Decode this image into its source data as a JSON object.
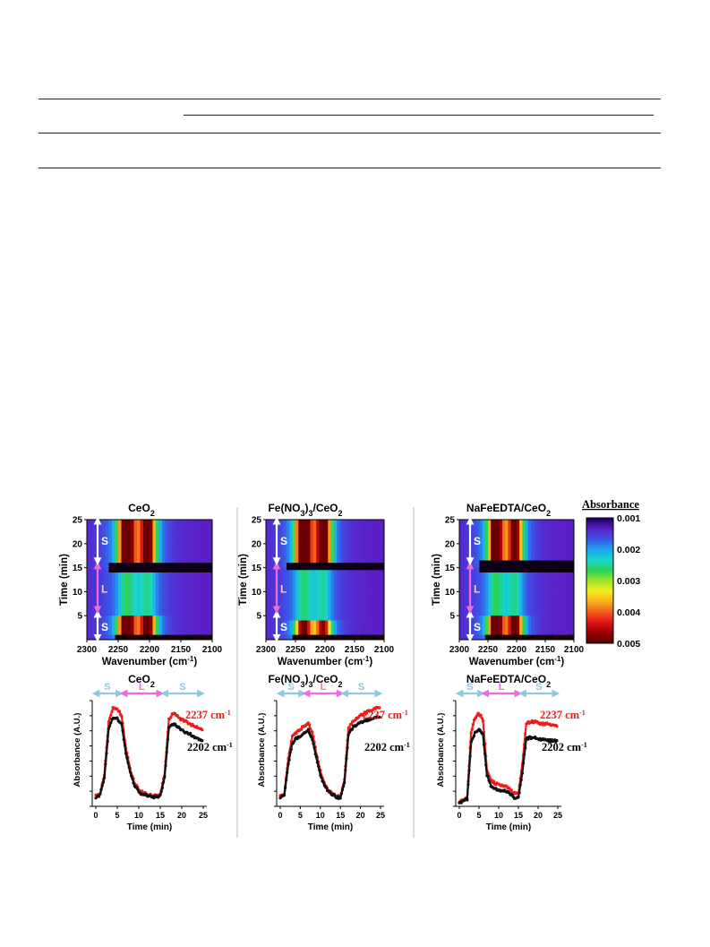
{
  "colors": {
    "s_arrow": "#8fc9dd",
    "l_arrow": "#e86ee0",
    "series_2237": "#ee1c1c",
    "series_2202": "#111111",
    "heatmap_high": "#b00000",
    "heatmap_low": "#7a10b0"
  },
  "heatmap": {
    "xlabel": "Wavenumber (cm",
    "xlabel_sup": "-1",
    "xlabel_end": ")",
    "ylabel": "Time (min)",
    "xticks": [
      "2300",
      "2250",
      "2200",
      "2150",
      "2100"
    ],
    "yticks": [
      "5",
      "10",
      "15",
      "20",
      "25"
    ],
    "s_label": "S",
    "l_label": "L"
  },
  "colorbar": {
    "title": "Absorbance",
    "ticks": [
      "0.001",
      "0.002",
      "0.003",
      "0.004",
      "0.005"
    ],
    "colors": [
      "#22006a",
      "#5b1fc8",
      "#3a57e8",
      "#1ea6f0",
      "#18d6c8",
      "#28d25a",
      "#9ee32a",
      "#f3ef20",
      "#f8b41c",
      "#f4631a",
      "#e2161a",
      "#a30000",
      "#5a0000"
    ]
  },
  "profile": {
    "xlabel": "Time (min)",
    "ylabel": "Absorbance (A.U.)",
    "xticks": [
      "0",
      "5",
      "10",
      "15",
      "20",
      "25"
    ],
    "s_label": "S",
    "l_label": "L",
    "label_2237": "2237 cm",
    "label_2202": "2202 cm",
    "sup": "-1"
  },
  "panels": [
    {
      "title": "CeO",
      "sub1": "2",
      "mid": "",
      "sub2": "",
      "tail": ""
    },
    {
      "title": "Fe(NO",
      "sub1": "3",
      "mid": ")",
      "sub2": "3",
      "tail": "/CeO2"
    },
    {
      "title": "NaFeEDTA/CeO",
      "sub1": "2",
      "mid": "",
      "sub2": "",
      "tail": ""
    }
  ],
  "chart_data": [
    {
      "type": "heatmap",
      "title": "CeO2",
      "xlabel": "Wavenumber (cm-1)",
      "ylabel": "Time (min)",
      "xlim": [
        2300,
        2100
      ],
      "ylim": [
        0,
        25
      ],
      "bands": [
        2237,
        2202
      ],
      "regions": [
        {
          "label": "S",
          "t": [
            0,
            5
          ]
        },
        {
          "label": "L",
          "t": [
            5,
            15
          ]
        },
        {
          "label": "S",
          "t": [
            15,
            25
          ]
        }
      ],
      "colorbar": {
        "title": "Absorbance",
        "range": [
          0.001,
          0.005
        ]
      }
    },
    {
      "type": "heatmap",
      "title": "Fe(NO3)3/CeO2",
      "xlabel": "Wavenumber (cm-1)",
      "ylabel": "Time (min)",
      "xlim": [
        2300,
        2100
      ],
      "ylim": [
        0,
        25
      ],
      "bands": [
        2237,
        2202
      ]
    },
    {
      "type": "heatmap",
      "title": "NaFeEDTA/CeO2",
      "xlabel": "Wavenumber (cm-1)",
      "ylabel": "Time (min)",
      "xlim": [
        2300,
        2100
      ],
      "ylim": [
        0,
        25
      ],
      "bands": [
        2237,
        2202
      ]
    },
    {
      "type": "line",
      "title": "CeO2",
      "xlabel": "Time (min)",
      "ylabel": "Absorbance (A.U.)",
      "xlim": [
        0,
        25
      ],
      "series": [
        {
          "name": "2237 cm-1",
          "x": [
            0,
            1,
            2,
            3,
            4,
            5,
            6,
            7,
            8,
            9,
            10,
            11,
            12,
            13,
            14,
            15,
            16,
            17,
            18,
            19,
            20,
            21,
            22,
            23,
            24,
            25
          ],
          "y": [
            0.1,
            0.12,
            0.3,
            0.8,
            0.93,
            0.92,
            0.86,
            0.55,
            0.35,
            0.22,
            0.16,
            0.13,
            0.11,
            0.1,
            0.1,
            0.11,
            0.3,
            0.82,
            0.88,
            0.85,
            0.82,
            0.8,
            0.78,
            0.76,
            0.74,
            0.72
          ]
        },
        {
          "name": "2202 cm-1",
          "x": [
            0,
            1,
            2,
            3,
            4,
            5,
            6,
            7,
            8,
            9,
            10,
            11,
            12,
            13,
            14,
            15,
            16,
            17,
            18,
            19,
            20,
            21,
            22,
            23,
            24,
            25
          ],
          "y": [
            0.09,
            0.11,
            0.27,
            0.74,
            0.84,
            0.83,
            0.78,
            0.5,
            0.32,
            0.2,
            0.14,
            0.11,
            0.1,
            0.09,
            0.09,
            0.1,
            0.27,
            0.74,
            0.78,
            0.75,
            0.72,
            0.7,
            0.68,
            0.66,
            0.64,
            0.62
          ]
        }
      ]
    },
    {
      "type": "line",
      "title": "Fe(NO3)3/CeO2",
      "xlabel": "Time (min)",
      "ylabel": "Absorbance (A.U.)",
      "xlim": [
        0,
        25
      ],
      "series": [
        {
          "name": "2237 cm-1",
          "x": [
            0,
            1,
            2,
            3,
            4,
            5,
            6,
            7,
            8,
            9,
            10,
            11,
            12,
            13,
            14,
            15,
            16,
            17,
            18,
            19,
            20,
            21,
            22,
            23,
            24,
            25
          ],
          "y": [
            0.1,
            0.11,
            0.45,
            0.66,
            0.7,
            0.73,
            0.76,
            0.78,
            0.7,
            0.5,
            0.33,
            0.22,
            0.15,
            0.12,
            0.1,
            0.09,
            0.25,
            0.74,
            0.8,
            0.83,
            0.86,
            0.88,
            0.9,
            0.91,
            0.93,
            0.94
          ]
        },
        {
          "name": "2202 cm-1",
          "x": [
            0,
            1,
            2,
            3,
            4,
            5,
            6,
            7,
            8,
            9,
            10,
            11,
            12,
            13,
            14,
            15,
            16,
            17,
            18,
            19,
            20,
            21,
            22,
            23,
            24,
            25
          ],
          "y": [
            0.09,
            0.1,
            0.4,
            0.6,
            0.64,
            0.66,
            0.69,
            0.72,
            0.64,
            0.46,
            0.3,
            0.2,
            0.14,
            0.11,
            0.09,
            0.08,
            0.22,
            0.68,
            0.74,
            0.77,
            0.79,
            0.81,
            0.82,
            0.83,
            0.84,
            0.85
          ]
        }
      ]
    },
    {
      "type": "line",
      "title": "NaFeEDTA/CeO2",
      "xlabel": "Time (min)",
      "ylabel": "Absorbance (A.U.)",
      "xlim": [
        0,
        25
      ],
      "series": [
        {
          "name": "2237 cm-1",
          "x": [
            0,
            1,
            2,
            3,
            4,
            5,
            6,
            7,
            8,
            9,
            10,
            11,
            12,
            13,
            14,
            15,
            16,
            17,
            18,
            19,
            20,
            21,
            22,
            23,
            24,
            25
          ],
          "y": [
            0.05,
            0.06,
            0.08,
            0.7,
            0.84,
            0.88,
            0.82,
            0.35,
            0.25,
            0.22,
            0.21,
            0.2,
            0.19,
            0.15,
            0.12,
            0.12,
            0.4,
            0.78,
            0.8,
            0.8,
            0.79,
            0.78,
            0.78,
            0.77,
            0.77,
            0.76
          ]
        },
        {
          "name": "2202 cm-1",
          "x": [
            0,
            1,
            2,
            3,
            4,
            5,
            6,
            7,
            8,
            9,
            10,
            11,
            12,
            13,
            14,
            15,
            16,
            17,
            18,
            19,
            20,
            21,
            22,
            23,
            24,
            25
          ],
          "y": [
            0.04,
            0.05,
            0.07,
            0.6,
            0.7,
            0.72,
            0.68,
            0.3,
            0.2,
            0.17,
            0.16,
            0.15,
            0.14,
            0.11,
            0.08,
            0.08,
            0.32,
            0.64,
            0.65,
            0.65,
            0.64,
            0.63,
            0.63,
            0.62,
            0.62,
            0.62
          ]
        }
      ]
    }
  ]
}
